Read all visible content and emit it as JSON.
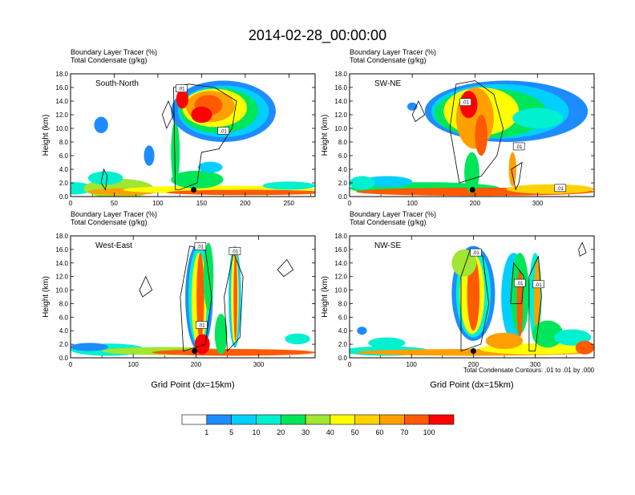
{
  "title": "2014-02-28_00:00:00",
  "contour_note": "Total Condensate Contours: .01 to .01 by .000",
  "colorbar": {
    "bins": [
      "#ffffff",
      "#1e8cff",
      "#00cfff",
      "#00f0d0",
      "#00e65a",
      "#a0e632",
      "#ffff00",
      "#ffd200",
      "#ffa000",
      "#ff5a00",
      "#ff0000"
    ],
    "labels": [
      "1",
      "5",
      "10",
      "20",
      "30",
      "40",
      "50",
      "60",
      "70",
      "100"
    ]
  },
  "chart_data": [
    {
      "type": "heatmap",
      "panel_label": "South-North",
      "header_line1": "Boundary Layer Tracer   (%)",
      "header_line2": "Total Condensate   (g/kg)",
      "ylabel": "Height (km)",
      "xlabel": "",
      "xlim": [
        0,
        280
      ],
      "ylim": [
        0,
        18
      ],
      "xticks": [
        "0",
        "50",
        "100",
        "150",
        "200",
        "250"
      ],
      "yticks": [
        "0.0",
        "2.0",
        "4.0",
        "6.0",
        "8.0",
        "10.0",
        "12.0",
        "14.0",
        "16.0",
        "18.0"
      ],
      "contour_labels": [
        {
          "text": ".01",
          "x": 127,
          "y": 15.8
        },
        {
          "text": ".01",
          "x": 175,
          "y": 9.6
        }
      ],
      "marker": {
        "x": 141,
        "y": 1.0
      }
    },
    {
      "type": "heatmap",
      "panel_label": "SW-NE",
      "header_line1": "Boundary Layer Tracer   (%)",
      "header_line2": "Total Condensate   (g/kg)",
      "ylabel": "Height (km)",
      "xlabel": "",
      "xlim": [
        0,
        390
      ],
      "ylim": [
        0,
        18
      ],
      "xticks": [
        "0",
        "100",
        "200",
        "300"
      ],
      "yticks": [
        "0.0",
        "2.0",
        "4.0",
        "6.0",
        "8.0",
        "10.0",
        "12.0",
        "14.0",
        "16.0",
        "18.0"
      ],
      "contour_labels": [
        {
          "text": ".01",
          "x": 185,
          "y": 13.8
        },
        {
          "text": ".01",
          "x": 270,
          "y": 7.3
        },
        {
          "text": ".01",
          "x": 336,
          "y": 1.2
        }
      ],
      "marker": {
        "x": 196,
        "y": 1.0
      }
    },
    {
      "type": "heatmap",
      "panel_label": "West-East",
      "header_line1": "Boundary Layer Tracer   (%)",
      "header_line2": "Total Condensate   (g/kg)",
      "ylabel": "Height (km)",
      "xlabel": "Grid Point (dx=15km)",
      "xlim": [
        0,
        390
      ],
      "ylim": [
        0,
        18
      ],
      "xticks": [
        "0",
        "100",
        "200",
        "300"
      ],
      "yticks": [
        "0.0",
        "2.0",
        "4.0",
        "6.0",
        "8.0",
        "10.0",
        "12.0",
        "14.0",
        "16.0",
        "18.0"
      ],
      "contour_labels": [
        {
          "text": ".01",
          "x": 207,
          "y": 16.4
        },
        {
          "text": ".01",
          "x": 262,
          "y": 15.7
        },
        {
          "text": ".01",
          "x": 209,
          "y": 4.8
        }
      ],
      "marker": {
        "x": 198,
        "y": 1.0
      }
    },
    {
      "type": "heatmap",
      "panel_label": "NW-SE",
      "header_line1": "Boundary Layer Tracer   (%)",
      "header_line2": "Total Condensate   (g/kg)",
      "ylabel": "Height (km)",
      "xlabel": "Grid Point (dx=15km)",
      "xlim": [
        0,
        395
      ],
      "ylim": [
        0,
        18
      ],
      "xticks": [
        "0",
        "100",
        "200",
        "300"
      ],
      "yticks": [
        "0.0",
        "2.0",
        "4.0",
        "6.0",
        "8.0",
        "10.0",
        "12.0",
        "14.0",
        "16.0",
        "18.0"
      ],
      "contour_labels": [
        {
          "text": ".01",
          "x": 204,
          "y": 15.5
        },
        {
          "text": ".01",
          "x": 275,
          "y": 11.0
        },
        {
          "text": ".01",
          "x": 305,
          "y": 10.8
        }
      ],
      "marker": {
        "x": 200,
        "y": 1.0
      }
    }
  ]
}
